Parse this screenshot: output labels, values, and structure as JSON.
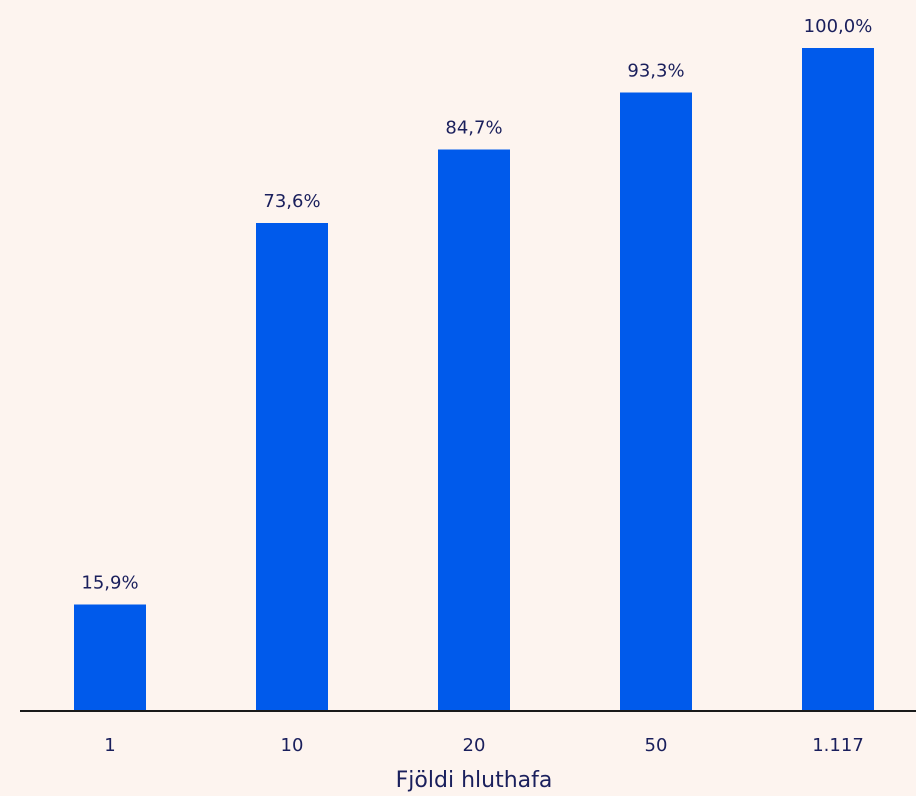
{
  "chart_data": {
    "type": "bar",
    "title": "",
    "xlabel": "Fjöldi hluthafa",
    "ylabel": "",
    "categories": [
      "1",
      "10",
      "20",
      "50",
      "1.117"
    ],
    "values": [
      15.9,
      73.6,
      84.7,
      93.3,
      100.0
    ],
    "value_labels": [
      "15,9%",
      "73,6%",
      "84,7%",
      "93,3%",
      "100,0%"
    ],
    "ylim": [
      0,
      100
    ],
    "grid": false,
    "legend": "none",
    "colors": {
      "bar": "#005aeb",
      "text": "#1a1f5c",
      "axis": "#1a1a1a",
      "background": "#fdf4ef"
    }
  }
}
